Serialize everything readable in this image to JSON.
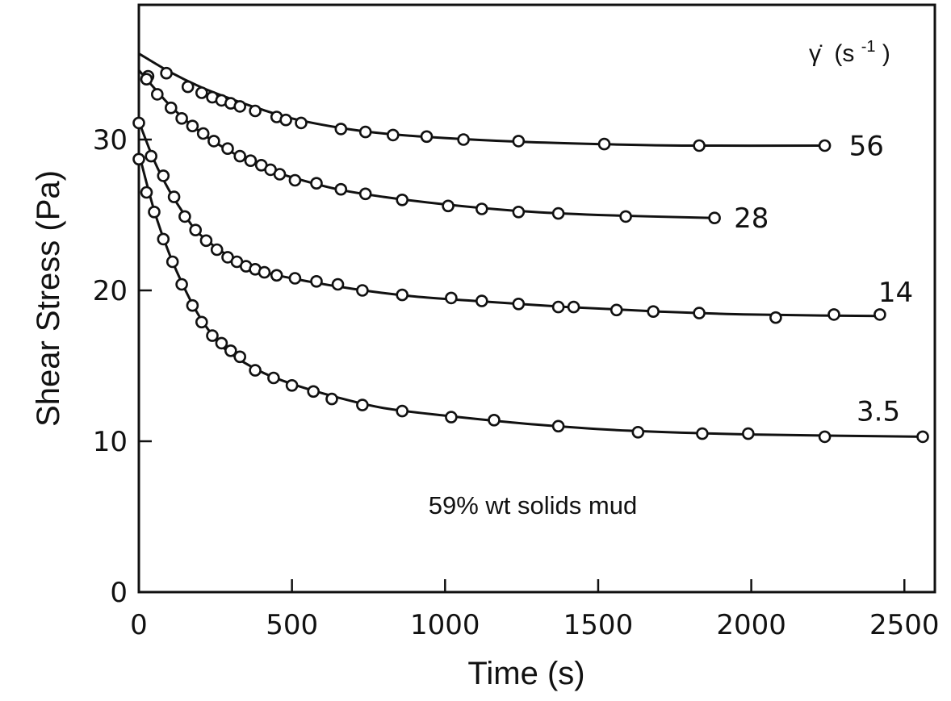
{
  "chart_data": {
    "type": "line",
    "xlabel": "Time (s)",
    "ylabel": "Shear Stress (Pa)",
    "xlim": [
      0,
      2600
    ],
    "ylim": [
      0,
      39
    ],
    "xticks": [
      0,
      500,
      1000,
      1500,
      2000,
      2500
    ],
    "yticks": [
      0,
      10,
      20,
      30
    ],
    "xtick_labels": [
      "0",
      "500",
      "1000",
      "1500",
      "2000",
      "2500"
    ],
    "ytick_labels": [
      "0",
      "10",
      "20",
      "30"
    ],
    "legend_title": {
      "symbol": "γ̇",
      "unit_base": "(s",
      "unit_exp": "-1",
      "unit_close": ")"
    },
    "annotation": "59% wt solids mud",
    "grid": false,
    "series": [
      {
        "name": "56",
        "points": [
          [
            30,
            34.2
          ],
          [
            90,
            34.4
          ],
          [
            160,
            33.5
          ],
          [
            205,
            33.1
          ],
          [
            240,
            32.8
          ],
          [
            270,
            32.6
          ],
          [
            300,
            32.4
          ],
          [
            330,
            32.2
          ],
          [
            380,
            31.9
          ],
          [
            450,
            31.5
          ],
          [
            480,
            31.3
          ],
          [
            530,
            31.1
          ],
          [
            660,
            30.7
          ],
          [
            740,
            30.5
          ],
          [
            830,
            30.3
          ],
          [
            940,
            30.2
          ],
          [
            1060,
            30.0
          ],
          [
            1240,
            29.9
          ],
          [
            1520,
            29.7
          ],
          [
            1830,
            29.6
          ],
          [
            2240,
            29.6
          ]
        ],
        "curve": [
          [
            0,
            35.7
          ],
          [
            100,
            34.5
          ],
          [
            200,
            33.5
          ],
          [
            300,
            32.7
          ],
          [
            400,
            32.0
          ],
          [
            500,
            31.4
          ],
          [
            650,
            30.8
          ],
          [
            800,
            30.4
          ],
          [
            1000,
            30.1
          ],
          [
            1250,
            29.85
          ],
          [
            1500,
            29.7
          ],
          [
            1800,
            29.6
          ],
          [
            2240,
            29.6
          ]
        ]
      },
      {
        "name": "28",
        "points": [
          [
            25,
            34.0
          ],
          [
            60,
            33.0
          ],
          [
            105,
            32.1
          ],
          [
            140,
            31.4
          ],
          [
            175,
            30.9
          ],
          [
            210,
            30.4
          ],
          [
            245,
            29.9
          ],
          [
            290,
            29.4
          ],
          [
            330,
            28.9
          ],
          [
            365,
            28.6
          ],
          [
            400,
            28.3
          ],
          [
            430,
            28.0
          ],
          [
            460,
            27.7
          ],
          [
            510,
            27.3
          ],
          [
            580,
            27.1
          ],
          [
            660,
            26.7
          ],
          [
            740,
            26.4
          ],
          [
            860,
            26.0
          ],
          [
            1010,
            25.6
          ],
          [
            1120,
            25.4
          ],
          [
            1240,
            25.2
          ],
          [
            1370,
            25.1
          ],
          [
            1590,
            24.9
          ],
          [
            1880,
            24.8
          ]
        ],
        "curve": [
          [
            0,
            34.6
          ],
          [
            100,
            32.3
          ],
          [
            200,
            30.5
          ],
          [
            300,
            29.2
          ],
          [
            400,
            28.2
          ],
          [
            500,
            27.5
          ],
          [
            650,
            26.7
          ],
          [
            800,
            26.2
          ],
          [
            1000,
            25.7
          ],
          [
            1250,
            25.25
          ],
          [
            1500,
            25.0
          ],
          [
            1880,
            24.8
          ]
        ]
      },
      {
        "name": "14",
        "points": [
          [
            0,
            31.1
          ],
          [
            40,
            28.9
          ],
          [
            80,
            27.6
          ],
          [
            115,
            26.2
          ],
          [
            150,
            24.9
          ],
          [
            185,
            24.0
          ],
          [
            220,
            23.3
          ],
          [
            255,
            22.7
          ],
          [
            290,
            22.2
          ],
          [
            320,
            21.9
          ],
          [
            350,
            21.6
          ],
          [
            380,
            21.4
          ],
          [
            410,
            21.2
          ],
          [
            450,
            21.0
          ],
          [
            510,
            20.8
          ],
          [
            580,
            20.6
          ],
          [
            650,
            20.4
          ],
          [
            730,
            20.0
          ],
          [
            860,
            19.7
          ],
          [
            1020,
            19.5
          ],
          [
            1120,
            19.3
          ],
          [
            1240,
            19.1
          ],
          [
            1370,
            18.9
          ],
          [
            1420,
            18.9
          ],
          [
            1560,
            18.7
          ],
          [
            1680,
            18.6
          ],
          [
            1830,
            18.5
          ],
          [
            2080,
            18.2
          ],
          [
            2270,
            18.4
          ],
          [
            2420,
            18.4
          ]
        ],
        "curve": [
          [
            0,
            31.2
          ],
          [
            50,
            28.6
          ],
          [
            100,
            26.6
          ],
          [
            150,
            25.0
          ],
          [
            200,
            23.7
          ],
          [
            300,
            22.2
          ],
          [
            400,
            21.3
          ],
          [
            500,
            20.8
          ],
          [
            700,
            20.1
          ],
          [
            900,
            19.6
          ],
          [
            1100,
            19.3
          ],
          [
            1400,
            18.9
          ],
          [
            1700,
            18.6
          ],
          [
            2000,
            18.4
          ],
          [
            2420,
            18.3
          ]
        ]
      },
      {
        "name": "3.5",
        "points": [
          [
            0,
            28.7
          ],
          [
            25,
            26.5
          ],
          [
            50,
            25.2
          ],
          [
            80,
            23.4
          ],
          [
            110,
            21.9
          ],
          [
            140,
            20.4
          ],
          [
            175,
            19.0
          ],
          [
            205,
            17.9
          ],
          [
            240,
            17.0
          ],
          [
            270,
            16.5
          ],
          [
            300,
            16.0
          ],
          [
            330,
            15.6
          ],
          [
            380,
            14.7
          ],
          [
            440,
            14.2
          ],
          [
            500,
            13.7
          ],
          [
            570,
            13.3
          ],
          [
            630,
            12.8
          ],
          [
            730,
            12.4
          ],
          [
            860,
            12.0
          ],
          [
            1020,
            11.6
          ],
          [
            1160,
            11.4
          ],
          [
            1370,
            11.0
          ],
          [
            1630,
            10.6
          ],
          [
            1840,
            10.5
          ],
          [
            1990,
            10.5
          ],
          [
            2240,
            10.3
          ],
          [
            2560,
            10.3
          ]
        ],
        "curve": [
          [
            0,
            29.1
          ],
          [
            50,
            25.3
          ],
          [
            100,
            22.4
          ],
          [
            150,
            20.1
          ],
          [
            200,
            18.2
          ],
          [
            250,
            16.8
          ],
          [
            300,
            15.8
          ],
          [
            400,
            14.6
          ],
          [
            500,
            13.8
          ],
          [
            650,
            12.9
          ],
          [
            800,
            12.2
          ],
          [
            1000,
            11.7
          ],
          [
            1300,
            11.1
          ],
          [
            1600,
            10.7
          ],
          [
            2000,
            10.45
          ],
          [
            2560,
            10.3
          ]
        ]
      }
    ]
  }
}
